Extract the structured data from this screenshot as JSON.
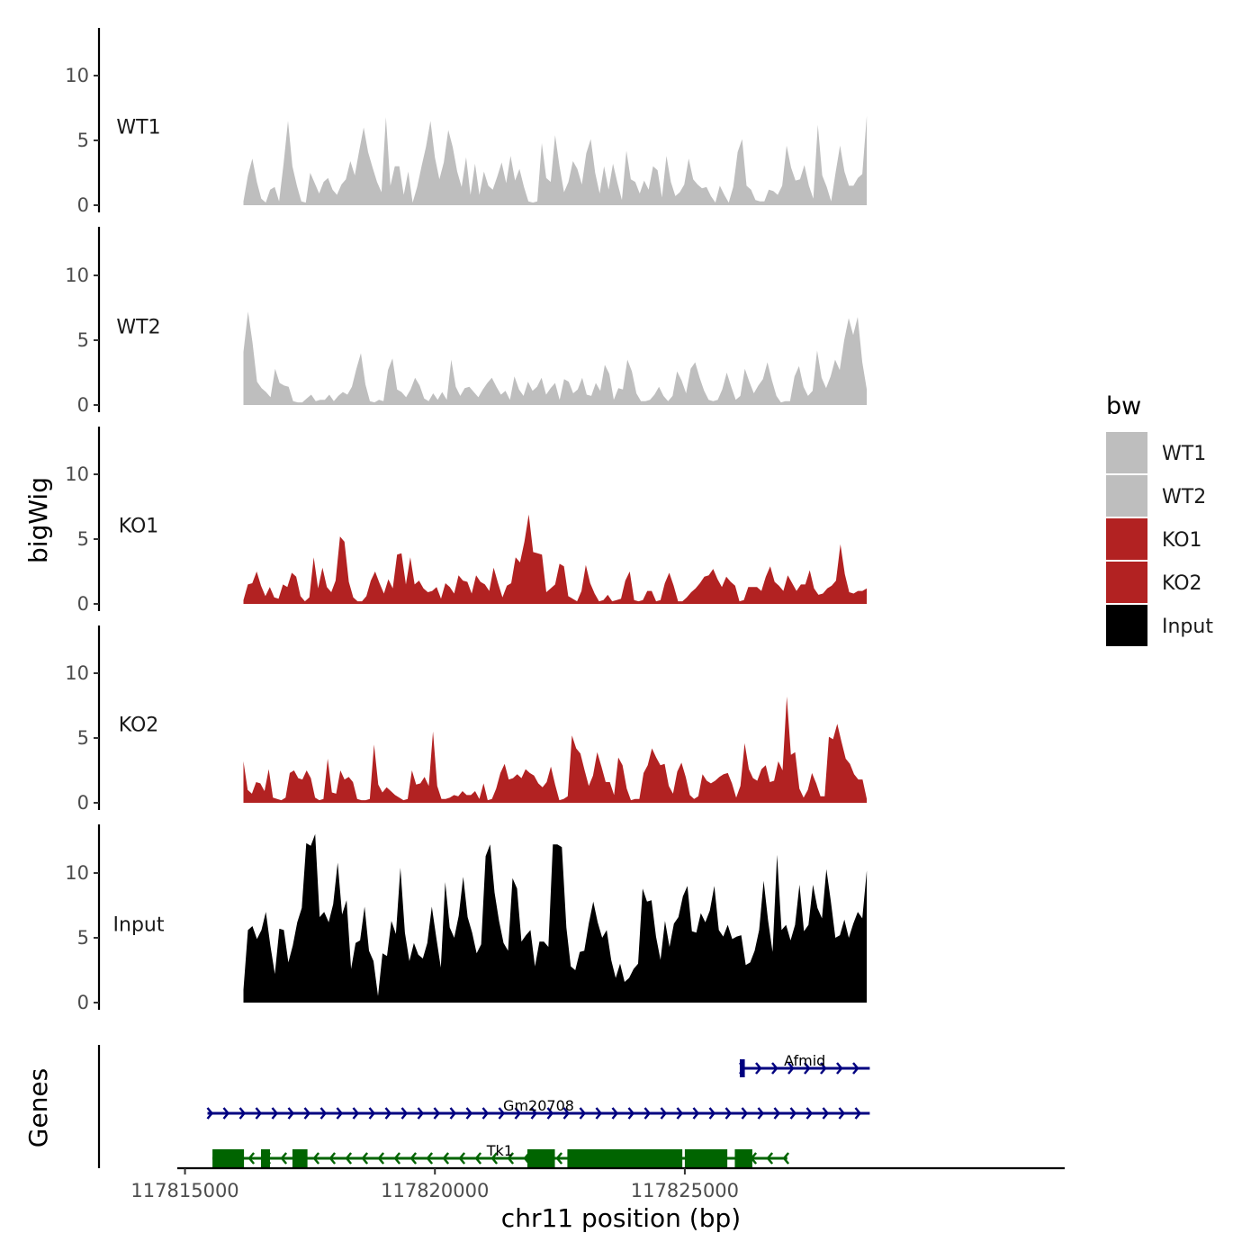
{
  "chart_data": {
    "type": "area",
    "title": "",
    "chromosome": "chr11",
    "xlabel": "chr11 position (bp)",
    "ylabel": "bigWig",
    "genes_label": "Genes",
    "xlim": [
      117814900,
      117832600
    ],
    "x_ticks": [
      117815000,
      117820000,
      117825000
    ],
    "x_tick_labels": [
      "117815000",
      "117820000",
      "117825000"
    ],
    "ylim": [
      0,
      13.5
    ],
    "y_ticks": [
      0,
      5,
      10
    ],
    "y_tick_labels": [
      "0",
      "5",
      "10"
    ],
    "legend": {
      "title": "bw",
      "position": "right",
      "items": [
        {
          "label": "WT1",
          "color": "#BEBEBE"
        },
        {
          "label": "WT2",
          "color": "#BEBEBE"
        },
        {
          "label": "KO1",
          "color": "#B22222"
        },
        {
          "label": "KO2",
          "color": "#B22222"
        },
        {
          "label": "Input",
          "color": "#000000"
        }
      ]
    },
    "tracks": [
      {
        "name": "WT1",
        "color": "#BEBEBE",
        "x_start": 117816170,
        "x_end": 117828640,
        "values": [
          0.3,
          2.3,
          3.6,
          1.8,
          0.5,
          0.2,
          1.2,
          1.4,
          0.3,
          3.2,
          6.5,
          3.0,
          1.5,
          0.3,
          0.2,
          2.5,
          1.7,
          0.9,
          1.8,
          2.1,
          1.2,
          0.8,
          1.6,
          2.0,
          3.4,
          2.3,
          4.2,
          6.0,
          4.1,
          2.9,
          1.8,
          1.0,
          6.8,
          1.5,
          3.0,
          3.0,
          0.8,
          2.6,
          0.2,
          1.4,
          3.0,
          4.5,
          6.5,
          3.7,
          2.0,
          3.3,
          5.8,
          4.5,
          2.6,
          1.4,
          3.7,
          0.8,
          3.2,
          0.8,
          2.6,
          1.5,
          1.2,
          2.2,
          3.3,
          1.7,
          3.8,
          1.9,
          2.8,
          1.4,
          0.3,
          0.2,
          0.3,
          4.8,
          2.1,
          1.8,
          5.4,
          3.0,
          1.0,
          1.8,
          3.4,
          2.8,
          1.6,
          4.0,
          5.1,
          2.5,
          0.9,
          3.0,
          1.2,
          3.2,
          1.7,
          0.4,
          4.2,
          2.0,
          1.8,
          0.9,
          1.9,
          1.2,
          3.0,
          2.7,
          0.6,
          3.8,
          1.8,
          0.7,
          1.0,
          1.6,
          3.6,
          2.0,
          1.6,
          1.3,
          1.4,
          0.7,
          0.2,
          1.5,
          0.8,
          0.2,
          1.4,
          4.1,
          5.1,
          1.5,
          1.2,
          0.4,
          0.3,
          0.3,
          1.2,
          1.1,
          0.8,
          1.5,
          4.6,
          2.9,
          1.9,
          2.0,
          3.1,
          1.5,
          0.5,
          6.2,
          2.3,
          1.4,
          0.3,
          2.5,
          4.6,
          2.6,
          1.5,
          1.5,
          2.1,
          2.4,
          6.9
        ]
      },
      {
        "name": "WT2",
        "color": "#BEBEBE",
        "x_start": 117816170,
        "x_end": 117828640,
        "values": [
          4.1,
          7.2,
          4.8,
          1.8,
          1.3,
          1.0,
          0.6,
          2.8,
          1.7,
          1.5,
          1.4,
          0.3,
          0.2,
          0.2,
          0.5,
          0.8,
          0.3,
          0.4,
          0.4,
          0.8,
          0.3,
          0.7,
          1.0,
          0.8,
          1.4,
          2.8,
          4.0,
          1.6,
          0.3,
          0.2,
          0.4,
          0.3,
          2.7,
          3.6,
          1.2,
          1.0,
          0.6,
          1.2,
          2.1,
          1.5,
          0.5,
          0.3,
          0.9,
          0.4,
          1.0,
          0.4,
          3.5,
          1.4,
          0.7,
          1.3,
          1.4,
          1.0,
          0.6,
          1.2,
          1.7,
          2.1,
          1.4,
          0.8,
          1.1,
          0.4,
          2.2,
          1.2,
          0.7,
          1.8,
          1.1,
          1.4,
          2.1,
          0.8,
          1.3,
          1.7,
          0.4,
          2.0,
          1.8,
          0.9,
          1.2,
          2.1,
          0.8,
          0.7,
          1.7,
          1.1,
          3.1,
          2.4,
          0.4,
          1.3,
          1.2,
          3.5,
          2.6,
          0.9,
          0.3,
          0.3,
          0.4,
          0.8,
          1.4,
          0.7,
          0.3,
          0.7,
          2.6,
          1.9,
          0.9,
          2.8,
          3.3,
          2.1,
          1.1,
          0.4,
          0.3,
          0.4,
          1.2,
          2.5,
          1.4,
          0.4,
          0.7,
          2.8,
          1.8,
          0.9,
          1.5,
          2.0,
          3.3,
          1.9,
          0.7,
          0.2,
          0.3,
          0.3,
          2.2,
          3.0,
          1.4,
          0.7,
          1.1,
          4.2,
          2.1,
          1.3,
          2.2,
          3.5,
          2.7,
          5.0,
          6.7,
          5.4,
          6.8,
          3.3,
          1.2
        ]
      },
      {
        "name": "KO1",
        "color": "#B22222",
        "x_start": 117816170,
        "x_end": 117828640,
        "values": [
          0.3,
          1.5,
          1.6,
          2.5,
          1.4,
          0.6,
          1.3,
          0.5,
          0.4,
          1.5,
          1.3,
          2.4,
          2.1,
          0.6,
          0.2,
          0.5,
          3.6,
          1.2,
          2.8,
          1.3,
          0.9,
          1.8,
          5.2,
          4.8,
          1.7,
          0.5,
          0.2,
          0.2,
          0.6,
          1.8,
          2.5,
          1.6,
          0.8,
          1.9,
          1.2,
          3.8,
          3.9,
          1.5,
          3.6,
          1.5,
          1.8,
          1.2,
          0.9,
          1.0,
          1.3,
          0.4,
          1.6,
          1.3,
          0.8,
          2.2,
          1.8,
          1.7,
          0.8,
          2.2,
          1.7,
          1.5,
          1.0,
          2.8,
          1.6,
          0.5,
          1.4,
          1.6,
          3.6,
          3.2,
          4.8,
          6.9,
          4.0,
          3.9,
          3.8,
          0.9,
          1.2,
          1.5,
          3.1,
          2.9,
          0.6,
          0.4,
          0.2,
          1.0,
          3.0,
          1.6,
          0.8,
          0.2,
          0.3,
          0.7,
          0.2,
          0.3,
          0.4,
          1.8,
          2.5,
          0.3,
          0.2,
          0.3,
          1.0,
          1.0,
          0.2,
          0.3,
          1.6,
          2.4,
          1.4,
          0.2,
          0.2,
          0.5,
          0.9,
          1.2,
          1.6,
          2.1,
          2.2,
          2.7,
          1.9,
          1.3,
          2.1,
          1.7,
          1.4,
          0.2,
          0.3,
          1.3,
          1.3,
          1.3,
          1.0,
          2.1,
          2.9,
          1.7,
          1.4,
          1.0,
          2.2,
          1.6,
          1.0,
          1.5,
          1.5,
          2.6,
          1.2,
          0.7,
          0.8,
          1.2,
          1.4,
          1.8,
          4.6,
          2.3,
          0.9,
          0.8,
          1.0,
          1.0,
          1.2
        ]
      },
      {
        "name": "KO2",
        "color": "#B22222",
        "x_start": 117816170,
        "x_end": 117828640,
        "values": [
          3.2,
          1.0,
          0.7,
          1.6,
          1.5,
          0.9,
          2.6,
          0.4,
          0.3,
          0.2,
          0.4,
          2.3,
          2.5,
          1.9,
          1.8,
          2.5,
          1.9,
          0.4,
          0.2,
          0.3,
          3.4,
          0.8,
          0.7,
          2.5,
          1.8,
          2.0,
          1.6,
          0.3,
          0.2,
          0.2,
          0.3,
          4.5,
          1.4,
          0.8,
          1.2,
          0.9,
          0.6,
          0.4,
          0.2,
          0.3,
          2.5,
          1.4,
          1.5,
          2.0,
          1.3,
          5.5,
          1.3,
          0.3,
          0.3,
          0.4,
          0.6,
          0.5,
          0.9,
          0.6,
          0.6,
          0.9,
          0.3,
          1.5,
          0.2,
          0.3,
          1.1,
          2.3,
          3.0,
          1.8,
          1.9,
          2.2,
          1.9,
          2.6,
          2.3,
          2.1,
          1.5,
          1.2,
          1.6,
          2.8,
          1.4,
          0.2,
          0.3,
          0.5,
          5.2,
          4.2,
          3.8,
          2.5,
          1.3,
          2.1,
          3.9,
          2.8,
          1.6,
          1.6,
          0.6,
          3.5,
          2.9,
          1.1,
          0.2,
          0.3,
          0.3,
          2.3,
          2.9,
          4.2,
          3.5,
          2.9,
          3.0,
          1.3,
          0.7,
          2.4,
          3.1,
          2.0,
          0.6,
          0.3,
          0.5,
          2.2,
          1.7,
          1.5,
          1.7,
          2.0,
          2.2,
          2.3,
          1.5,
          0.4,
          1.3,
          4.6,
          2.6,
          1.9,
          1.7,
          2.6,
          2.9,
          1.6,
          1.7,
          3.2,
          2.5,
          8.2,
          3.7,
          3.9,
          1.1,
          0.4,
          1.0,
          2.3,
          1.5,
          0.5,
          0.5,
          5.1,
          4.9,
          6.1,
          4.7,
          3.4,
          3.0,
          2.2,
          1.8,
          1.8,
          0.3
        ]
      },
      {
        "name": "Input",
        "color": "#000000",
        "x_start": 117816170,
        "x_end": 117828640,
        "values": [
          1.0,
          5.6,
          5.9,
          4.9,
          5.6,
          7.0,
          4.4,
          2.2,
          5.7,
          5.6,
          3.1,
          4.4,
          6.2,
          7.3,
          12.3,
          12.1,
          13.0,
          6.6,
          7.0,
          6.2,
          7.6,
          10.8,
          6.8,
          7.9,
          2.6,
          4.6,
          4.8,
          7.4,
          4.0,
          3.2,
          0.5,
          3.8,
          3.6,
          6.3,
          5.3,
          10.4,
          5.4,
          3.2,
          4.6,
          3.7,
          3.4,
          4.6,
          7.4,
          5.0,
          2.7,
          9.3,
          5.8,
          5.0,
          6.7,
          9.7,
          6.6,
          5.4,
          3.8,
          4.5,
          11.3,
          12.2,
          8.5,
          6.3,
          4.6,
          4.0,
          9.6,
          8.8,
          4.7,
          5.2,
          5.6,
          2.8,
          4.7,
          4.7,
          4.3,
          12.2,
          12.2,
          12.0,
          5.8,
          2.8,
          2.5,
          3.9,
          4.0,
          6.1,
          7.8,
          6.2,
          5.0,
          5.6,
          3.3,
          1.9,
          3.0,
          1.6,
          1.9,
          2.6,
          3.0,
          8.8,
          7.8,
          7.9,
          5.1,
          3.3,
          6.3,
          4.3,
          6.1,
          6.6,
          8.2,
          9.0,
          5.5,
          5.4,
          6.9,
          6.2,
          7.1,
          9.0,
          5.6,
          5.1,
          6.0,
          4.9,
          5.1,
          5.2,
          2.9,
          3.1,
          4.0,
          5.6,
          9.4,
          6.3,
          3.9,
          11.4,
          5.6,
          6.0,
          4.8,
          6.0,
          9.1,
          5.5,
          6.0,
          9.1,
          7.3,
          6.5,
          10.3,
          7.8,
          5.0,
          5.2,
          6.4,
          5.0,
          6.1,
          7.0,
          6.5,
          10.2
        ]
      }
    ],
    "genes": [
      {
        "name": "Afmid",
        "strand": "+",
        "color": "#000080",
        "start": 117826100,
        "end": 117828700,
        "exons": [
          [
            117826100,
            117826200
          ]
        ]
      },
      {
        "name": "Gm20708",
        "strand": "+",
        "color": "#000080",
        "start": 117815450,
        "end": 117828700,
        "exons": []
      },
      {
        "name": "Tk1",
        "strand": "-",
        "color": "#006400",
        "start": 117815550,
        "end": 117827050,
        "exons": [
          [
            117815550,
            117816180
          ],
          [
            117816520,
            117816700
          ],
          [
            117817150,
            117817450
          ],
          [
            117821850,
            117822400
          ],
          [
            117822650,
            117824950
          ],
          [
            117825000,
            117825850
          ],
          [
            117826000,
            117826350
          ]
        ]
      }
    ]
  }
}
